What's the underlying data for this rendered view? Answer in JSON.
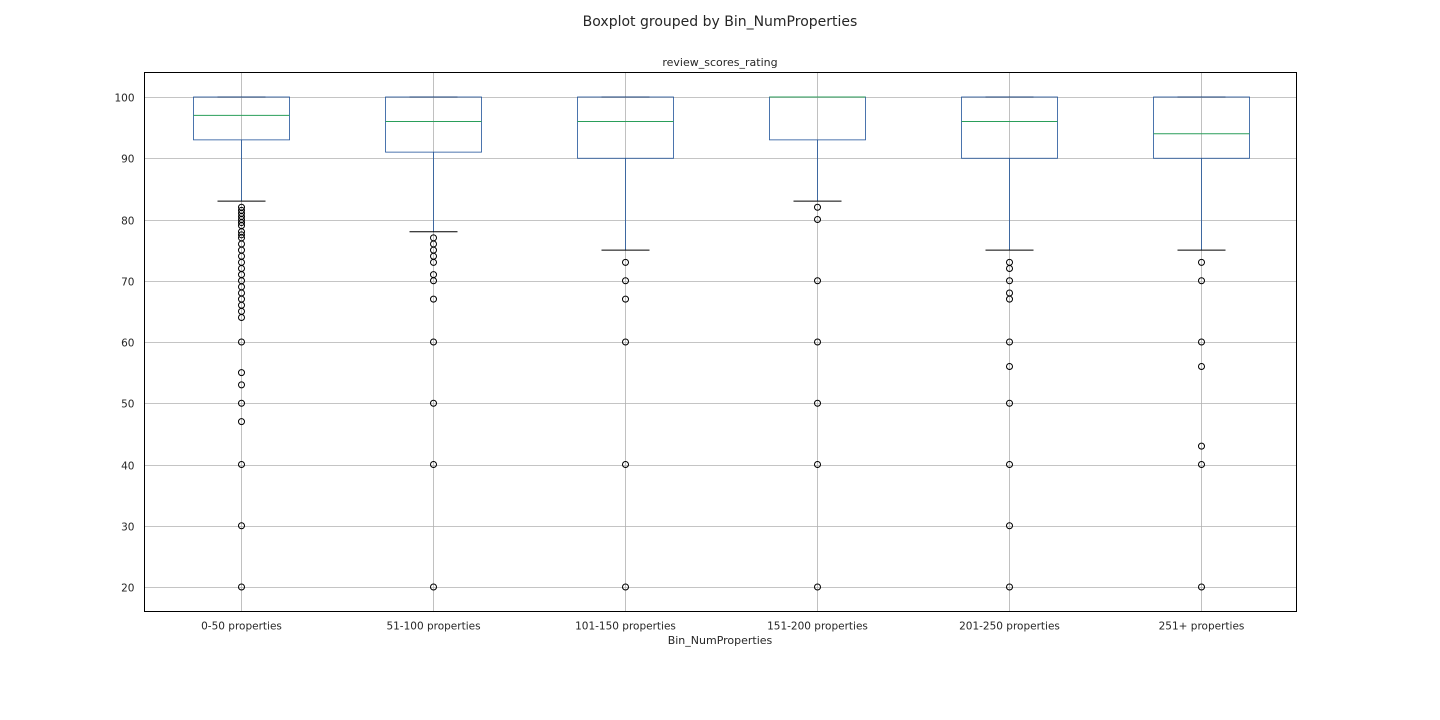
{
  "chart_data": {
    "type": "boxplot",
    "title": "Boxplot grouped by Bin_NumProperties",
    "subtitle": "review_scores_rating",
    "xlabel": "Bin_NumProperties",
    "ylabel": "",
    "ylim": [
      16,
      104
    ],
    "yticks": [
      20,
      30,
      40,
      50,
      60,
      70,
      80,
      90,
      100
    ],
    "grid": true,
    "colors": {
      "box": "#1f5299",
      "median": "#2a9e5a",
      "cap": "#000000",
      "flier": "#000000",
      "grid": "#b0b0b0"
    },
    "categories": [
      "0-50 properties",
      "51-100 properties",
      "101-150 properties",
      "151-200 properties",
      "201-250 properties",
      "251+ properties"
    ],
    "boxes": [
      {
        "q1": 93,
        "median": 97,
        "q3": 100,
        "whisker_low": 83,
        "whisker_high": 100,
        "fliers": [
          82,
          81.5,
          81,
          80.5,
          80,
          79.5,
          79,
          78,
          77.5,
          77,
          76,
          75,
          74,
          73,
          72,
          71,
          70,
          69,
          68,
          67,
          66,
          65,
          64,
          60,
          55,
          53,
          50,
          47,
          40,
          30,
          20
        ]
      },
      {
        "q1": 91,
        "median": 96,
        "q3": 100,
        "whisker_low": 78,
        "whisker_high": 100,
        "fliers": [
          77,
          76,
          75,
          74,
          73,
          71,
          70,
          67,
          60,
          50,
          40,
          20
        ]
      },
      {
        "q1": 90,
        "median": 96,
        "q3": 100,
        "whisker_low": 75,
        "whisker_high": 100,
        "fliers": [
          73,
          70,
          67,
          60,
          40,
          20
        ]
      },
      {
        "q1": 93,
        "median": 100,
        "q3": 100,
        "whisker_low": 83,
        "whisker_high": 100,
        "fliers": [
          82,
          80,
          70,
          60,
          50,
          40,
          20
        ]
      },
      {
        "q1": 90,
        "median": 96,
        "q3": 100,
        "whisker_low": 75,
        "whisker_high": 100,
        "fliers": [
          73,
          72,
          70,
          68,
          67,
          60,
          56,
          50,
          40,
          30,
          20
        ]
      },
      {
        "q1": 90,
        "median": 94,
        "q3": 100,
        "whisker_low": 75,
        "whisker_high": 100,
        "fliers": [
          73,
          70,
          60,
          56,
          43,
          40,
          20
        ]
      }
    ]
  }
}
